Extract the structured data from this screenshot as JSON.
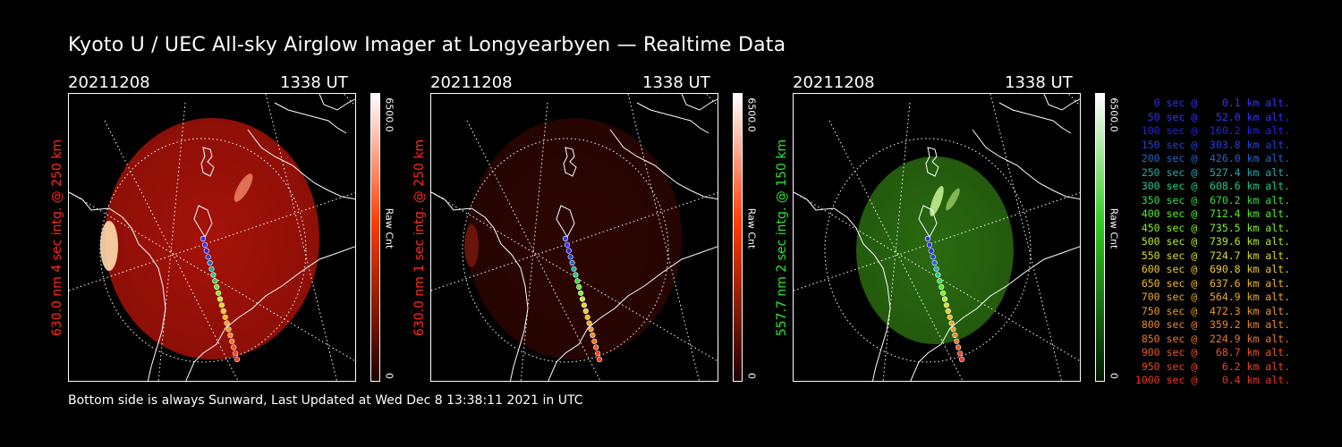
{
  "title": "Kyoto U / UEC All-sky Airglow Imager at Longyearbyen — Realtime Data",
  "footer": "Bottom side is always Sunward, Last Updated at Wed Dec  8 13:38:11 2021 in UTC",
  "panels": [
    {
      "date": "20211208",
      "time": "1338 UT",
      "side_label": "630.0 nm 4 sec intg. @ 250 km",
      "label_color": "#ff2a1a",
      "cbar_max": "6500.0",
      "cbar_min": "0",
      "cbar_unit": "Raw Cnt",
      "image_color": "#a51208",
      "cbar_top": "#ffffff",
      "cbar_mid": "#ff3b00",
      "cbar_bot": "#200000"
    },
    {
      "date": "20211208",
      "time": "1338 UT",
      "side_label": "630.0 nm 1 sec intg. @ 250 km",
      "label_color": "#ff2a1a",
      "cbar_max": "6500.0",
      "cbar_min": "0",
      "cbar_unit": "Raw Cnt",
      "image_color": "#2c0502",
      "cbar_top": "#ffffff",
      "cbar_mid": "#ff3b00",
      "cbar_bot": "#200000"
    },
    {
      "date": "20211208",
      "time": "1338 UT",
      "side_label": "557.7 nm 2 sec intg. @ 150 km",
      "label_color": "#2ee62e",
      "cbar_max": "6500.0",
      "cbar_min": "0",
      "cbar_unit": "Raw Cnt",
      "image_color": "#2a6a10",
      "cbar_top": "#ffffff",
      "cbar_mid": "#33cc22",
      "cbar_bot": "#001a00"
    }
  ],
  "legend": [
    {
      "text": "   0 sec @    0.1 km alt.",
      "color": "#3333ff"
    },
    {
      "text": "  50 sec @   52.0 km alt.",
      "color": "#3333ff"
    },
    {
      "text": " 100 sec @  160.2 km alt.",
      "color": "#2222ee"
    },
    {
      "text": " 150 sec @  303.8 km alt.",
      "color": "#2244dd"
    },
    {
      "text": " 200 sec @  426.0 km alt.",
      "color": "#2266cc"
    },
    {
      "text": " 250 sec @  527.4 km alt.",
      "color": "#22aaaa"
    },
    {
      "text": " 300 sec @  608.6 km alt.",
      "color": "#22cc88"
    },
    {
      "text": " 350 sec @  670.2 km alt.",
      "color": "#33dd44"
    },
    {
      "text": " 400 sec @  712.4 km alt.",
      "color": "#55ee22"
    },
    {
      "text": " 450 sec @  735.5 km alt.",
      "color": "#88ee22"
    },
    {
      "text": " 500 sec @  739.6 km alt.",
      "color": "#bbee22"
    },
    {
      "text": " 550 sec @  724.7 km alt.",
      "color": "#dddd22"
    },
    {
      "text": " 600 sec @  690.8 km alt.",
      "color": "#eecc22"
    },
    {
      "text": " 650 sec @  637.6 km alt.",
      "color": "#eebb22"
    },
    {
      "text": " 700 sec @  564.9 km alt.",
      "color": "#eeaa22"
    },
    {
      "text": " 750 sec @  472.3 km alt.",
      "color": "#ee9922"
    },
    {
      "text": " 800 sec @  359.2 km alt.",
      "color": "#ee8822"
    },
    {
      "text": " 850 sec @  224.9 km alt.",
      "color": "#ee7722"
    },
    {
      "text": " 900 sec @   68.7 km alt.",
      "color": "#ee5522"
    },
    {
      "text": " 950 sec @    6.2 km alt.",
      "color": "#ee4422"
    },
    {
      "text": "1000 sec @    0.4 km alt.",
      "color": "#ee3322"
    }
  ]
}
